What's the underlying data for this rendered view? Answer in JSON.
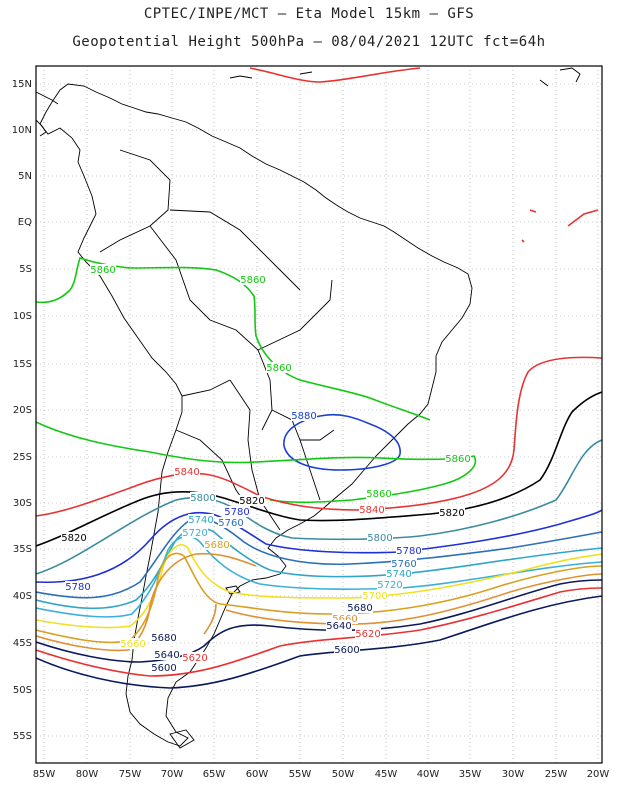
{
  "header": {
    "line1": "CPTEC/INPE/MCT –  Eta Model 15km – GFS",
    "line2": "Geopotential Height 500hPa – 08/04/2021 12UTC fct=64h"
  },
  "axes": {
    "lat_labels": [
      "15N",
      "10N",
      "5N",
      "EQ",
      "5S",
      "10S",
      "15S",
      "20S",
      "25S",
      "30S",
      "35S",
      "40S",
      "45S",
      "50S",
      "55S"
    ],
    "lon_labels": [
      "85W",
      "80W",
      "75W",
      "70W",
      "65W",
      "60W",
      "55W",
      "50W",
      "45W",
      "40W",
      "35W",
      "30W",
      "25W",
      "20W"
    ]
  },
  "colors": {
    "c5880": "#1a3fd6",
    "c5860": "#12c812",
    "c5840": "#e83232",
    "c5820": "#000000",
    "c5800": "#3c8ca0",
    "c5780": "#1e2fd8",
    "c5760": "#2a6fb8",
    "c5740": "#2fa6c8",
    "c5720": "#3cb0d8",
    "c5700": "#f0e020",
    "c5680": "#d8a020",
    "c5660": "#e09030",
    "c5640": "#0a1a5a",
    "c5620": "#e83232",
    "c5600": "#0a1a5a",
    "coast": "#000000",
    "grid": "#9a9a9a"
  },
  "contour_labels": [
    {
      "id": "l5860a",
      "text": "5860",
      "color": "c5860"
    },
    {
      "id": "l5860b",
      "text": "5860",
      "color": "c5860"
    },
    {
      "id": "l5860c",
      "text": "5860",
      "color": "c5860"
    },
    {
      "id": "l5860d",
      "text": "5860",
      "color": "c5860"
    },
    {
      "id": "l5860e",
      "text": "5860",
      "color": "c5860"
    },
    {
      "id": "l5880",
      "text": "5880",
      "color": "c5880"
    },
    {
      "id": "l5840a",
      "text": "5840",
      "color": "c5840"
    },
    {
      "id": "l5840b",
      "text": "5840",
      "color": "c5840"
    },
    {
      "id": "l5820a",
      "text": "5820",
      "color": "c5820"
    },
    {
      "id": "l5820b",
      "text": "5820",
      "color": "c5820"
    },
    {
      "id": "l5820c",
      "text": "5820",
      "color": "c5820"
    },
    {
      "id": "l5800a",
      "text": "5800",
      "color": "c5800"
    },
    {
      "id": "l5800b",
      "text": "5800",
      "color": "c5800"
    },
    {
      "id": "l5780a",
      "text": "5780",
      "color": "c5780"
    },
    {
      "id": "l5780b",
      "text": "5780",
      "color": "c5780"
    },
    {
      "id": "l5780c",
      "text": "5780",
      "color": "c5780"
    },
    {
      "id": "l5760a",
      "text": "5760",
      "color": "c5760"
    },
    {
      "id": "l5760b",
      "text": "5760",
      "color": "c5760"
    },
    {
      "id": "l5740a",
      "text": "5740",
      "color": "c5740"
    },
    {
      "id": "l5740b",
      "text": "5740",
      "color": "c5740"
    },
    {
      "id": "l5720a",
      "text": "5720",
      "color": "c5720"
    },
    {
      "id": "l5720b",
      "text": "5720",
      "color": "c5720"
    },
    {
      "id": "l5700a",
      "text": "5700",
      "color": "c5700"
    },
    {
      "id": "l5680a",
      "text": "5680",
      "color": "c5680"
    },
    {
      "id": "l5680b",
      "text": "5680",
      "color": "c5640"
    },
    {
      "id": "l5680c",
      "text": "5680",
      "color": "c5640"
    },
    {
      "id": "l5660a",
      "text": "5660",
      "color": "c5660"
    },
    {
      "id": "l5660b",
      "text": "5660",
      "color": "c5700"
    },
    {
      "id": "l5640a",
      "text": "5640",
      "color": "c5640"
    },
    {
      "id": "l5640b",
      "text": "5640",
      "color": "c5640"
    },
    {
      "id": "l5620a",
      "text": "5620",
      "color": "c5620"
    },
    {
      "id": "l5620b",
      "text": "5620",
      "color": "c5620"
    },
    {
      "id": "l5600a",
      "text": "5600",
      "color": "c5600"
    },
    {
      "id": "l5600b",
      "text": "5600",
      "color": "c5600"
    }
  ]
}
